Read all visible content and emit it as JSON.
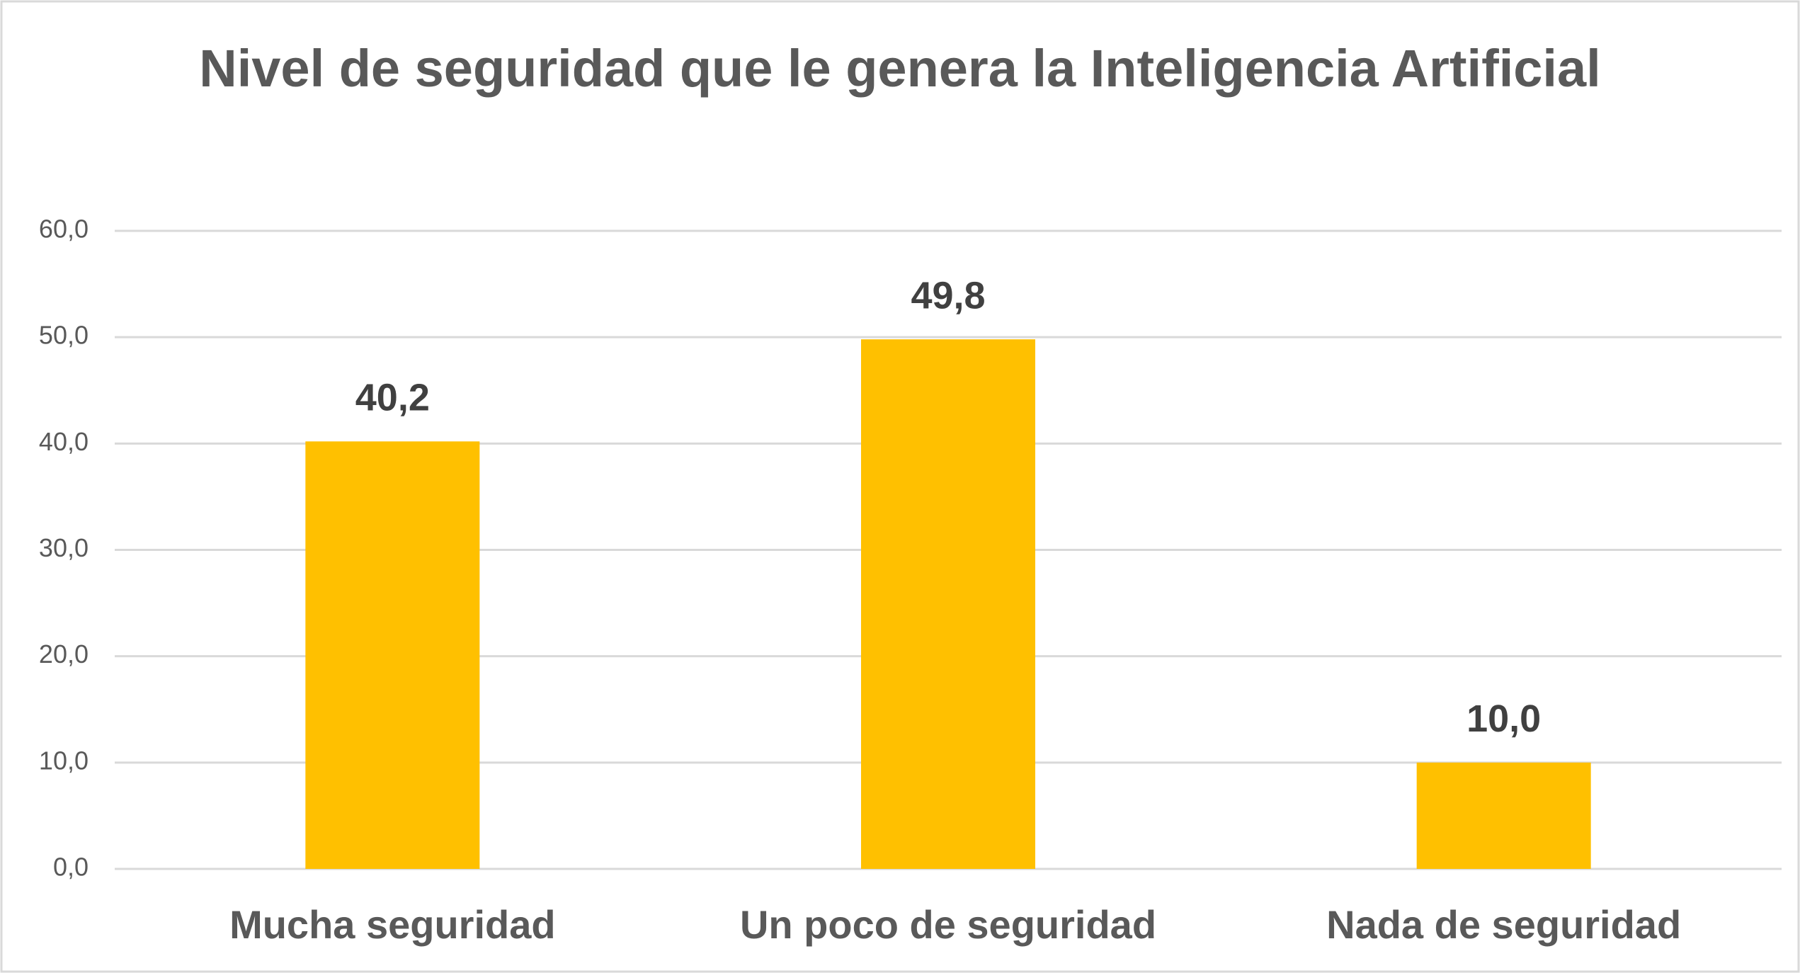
{
  "chart_data": {
    "type": "bar",
    "title": "Nivel de seguridad que le genera la Inteligencia Artificial",
    "categories": [
      "Mucha seguridad",
      "Un poco de seguridad",
      "Nada de seguridad"
    ],
    "values": [
      40.2,
      49.8,
      10.0
    ],
    "value_labels": [
      "40,2",
      "49,8",
      "10,0"
    ],
    "color": "#ffc000",
    "ylim": [
      0,
      60
    ],
    "yticks": [
      {
        "value": 0,
        "label": "0,0"
      },
      {
        "value": 10,
        "label": "10,0"
      },
      {
        "value": 20,
        "label": "20,0"
      },
      {
        "value": 30,
        "label": "30,0"
      },
      {
        "value": 40,
        "label": "40,0"
      },
      {
        "value": 50,
        "label": "50,0"
      },
      {
        "value": 60,
        "label": "60,0"
      }
    ],
    "grid": true
  }
}
